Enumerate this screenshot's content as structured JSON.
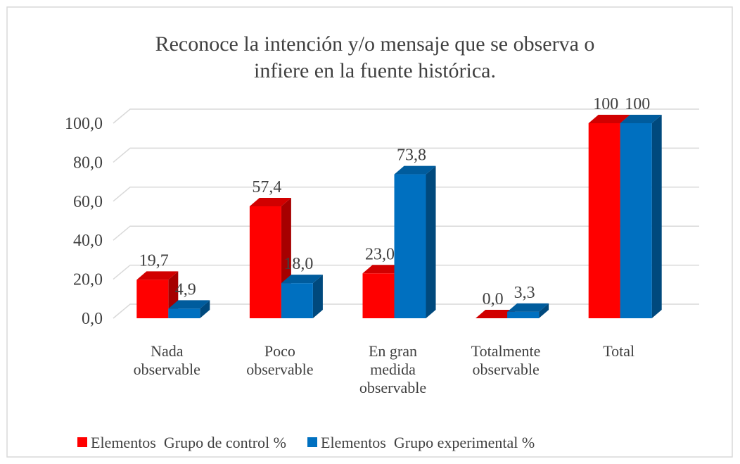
{
  "chart_data": {
    "type": "bar3d",
    "title": "Reconoce la intención y/o mensaje que se observa o",
    "subtitle": "infiere en la fuente histórica.",
    "categories": [
      "Nada observable",
      "Poco observable",
      "En gran medida observable",
      "Totalmente observable",
      "Total"
    ],
    "series": [
      {
        "name": "Elementos  Grupo de control %",
        "color": "#ff0000",
        "values": [
          19.7,
          57.4,
          23.0,
          0.0,
          100
        ],
        "value_labels": [
          "19,7",
          "57,4",
          "23,0",
          "0,0",
          "100"
        ]
      },
      {
        "name": "Elementos  Grupo experimental %",
        "color": "#0070c0",
        "values": [
          4.9,
          18.0,
          73.8,
          3.3,
          100
        ],
        "value_labels": [
          "4,9",
          "18,0",
          "73,8",
          "3,3",
          "100"
        ]
      }
    ],
    "ylim": [
      0,
      100
    ],
    "yticks": [
      {
        "value": 0,
        "label": "0,0"
      },
      {
        "value": 20,
        "label": "20,0"
      },
      {
        "value": 40,
        "label": "40,0"
      },
      {
        "value": 60,
        "label": "60,0"
      },
      {
        "value": 80,
        "label": "80,0"
      },
      {
        "value": 100,
        "label": "100,0"
      }
    ],
    "grid": true,
    "legend": "bottom"
  }
}
